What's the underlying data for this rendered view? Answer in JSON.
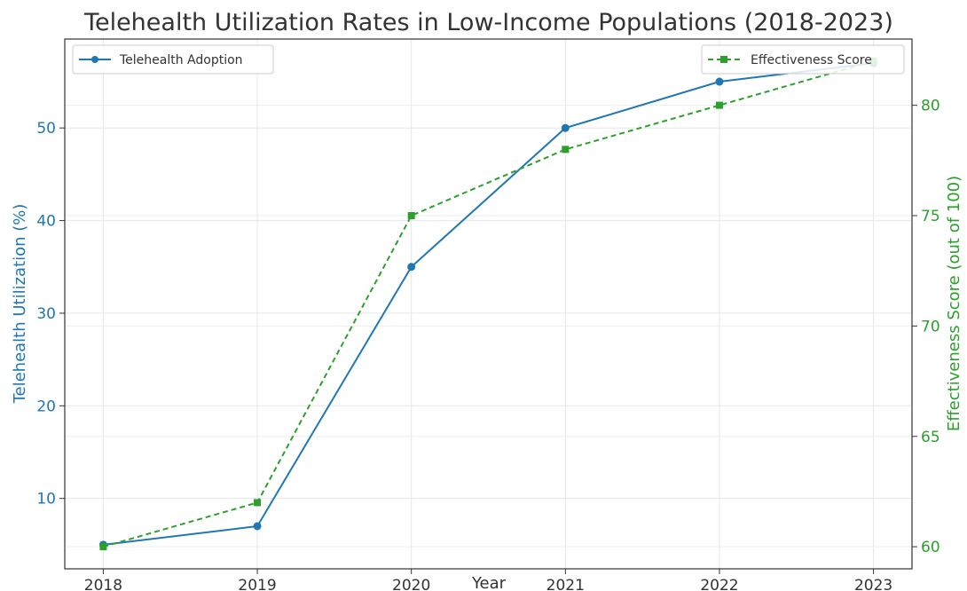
{
  "chart_data": {
    "type": "line",
    "title": "Telehealth Utilization Rates in Low-Income Populations (2018-2023)",
    "xlabel": "Year",
    "x": [
      2018,
      2019,
      2020,
      2021,
      2022,
      2023
    ],
    "x_tick_labels": [
      "2018",
      "2019",
      "2020",
      "2021",
      "2022",
      "2023"
    ],
    "xlim": [
      2017.75,
      2023.25
    ],
    "grid": true,
    "series": [
      {
        "name": "Telehealth Adoption",
        "axis": "left",
        "values": [
          5,
          7,
          35,
          50,
          55,
          57
        ],
        "color": "#1f77b4",
        "marker": "circle",
        "line_style": "solid",
        "legend_position": "top-left"
      },
      {
        "name": "Effectiveness Score",
        "axis": "right",
        "values": [
          60,
          62,
          75,
          78,
          80,
          82
        ],
        "color": "#2ca02c",
        "marker": "square",
        "line_style": "dashed",
        "legend_position": "top-right"
      }
    ],
    "y_left": {
      "label": "Telehealth Utilization (%)",
      "range": [
        2.4,
        59.6
      ],
      "ticks": [
        10,
        20,
        30,
        40,
        50
      ],
      "tick_labels": [
        "10",
        "20",
        "30",
        "40",
        "50"
      ],
      "color": "#1f77b4"
    },
    "y_right": {
      "label": "Effectiveness Score (out of 100)",
      "range": [
        59.0,
        83.0
      ],
      "ticks": [
        60,
        65,
        70,
        75,
        80
      ],
      "tick_labels": [
        "60",
        "65",
        "70",
        "75",
        "80"
      ],
      "color": "#2ca02c"
    }
  }
}
